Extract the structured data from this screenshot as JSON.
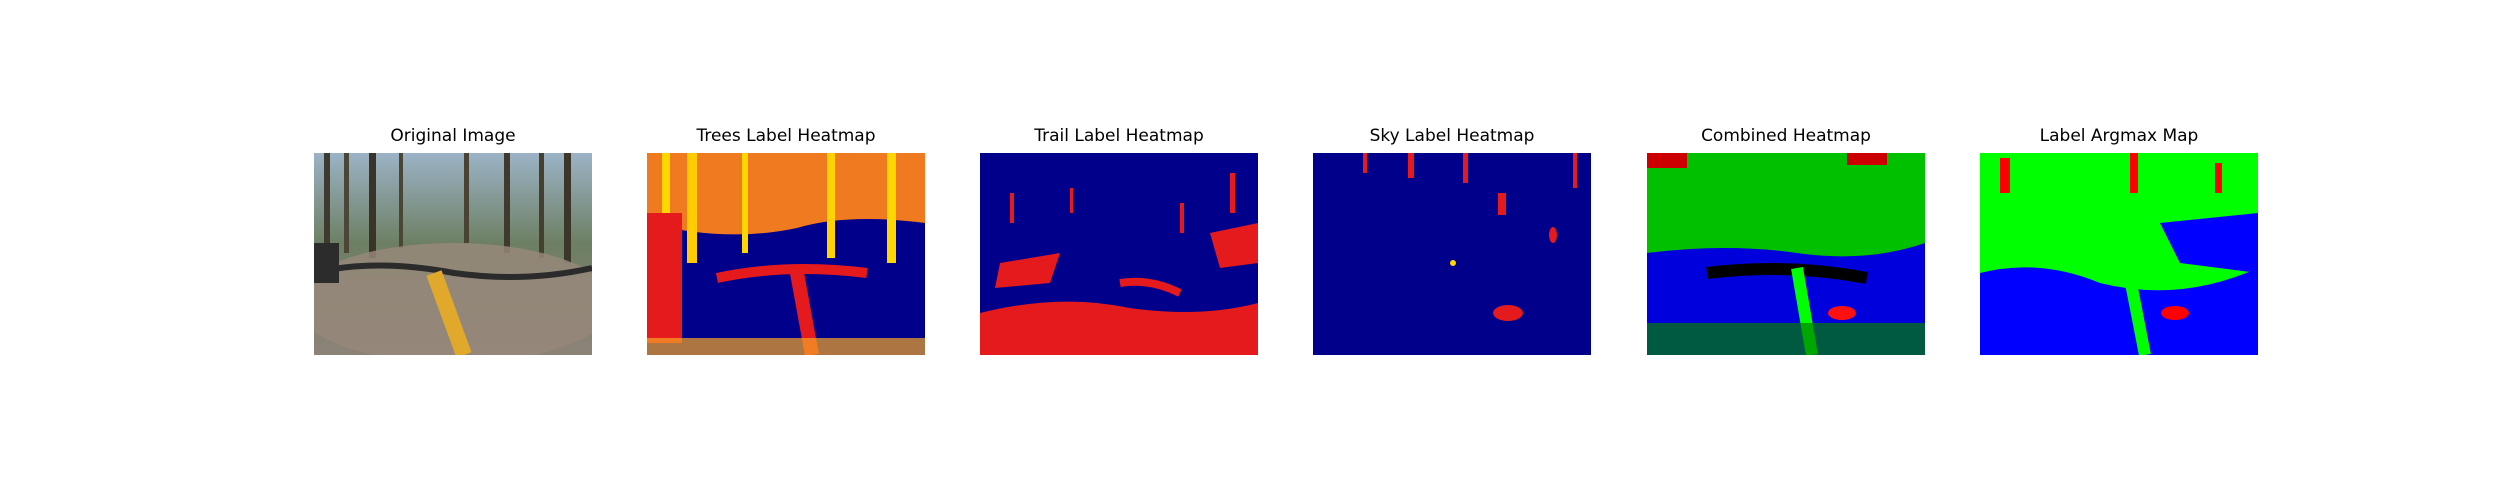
{
  "panels": [
    {
      "title": "Original Image",
      "image": "forest-trail-bike-photo"
    },
    {
      "title": "Trees Label Heatmap",
      "image": "trees-heatmap"
    },
    {
      "title": "Trail Label Heatmap",
      "image": "trail-heatmap"
    },
    {
      "title": "Sky Label Heatmap",
      "image": "sky-heatmap"
    },
    {
      "title": "Combined Heatmap",
      "image": "combined-heatmap"
    },
    {
      "title": "Label Argmax Map",
      "image": "argmax-map"
    }
  ],
  "colors": {
    "heat_low": "#00008b",
    "heat_mid": "#e41a1c",
    "heat_high": "#ffd700",
    "trees_green": "#00ff00",
    "trail_blue": "#0000ff",
    "sky_red": "#ff0000"
  }
}
